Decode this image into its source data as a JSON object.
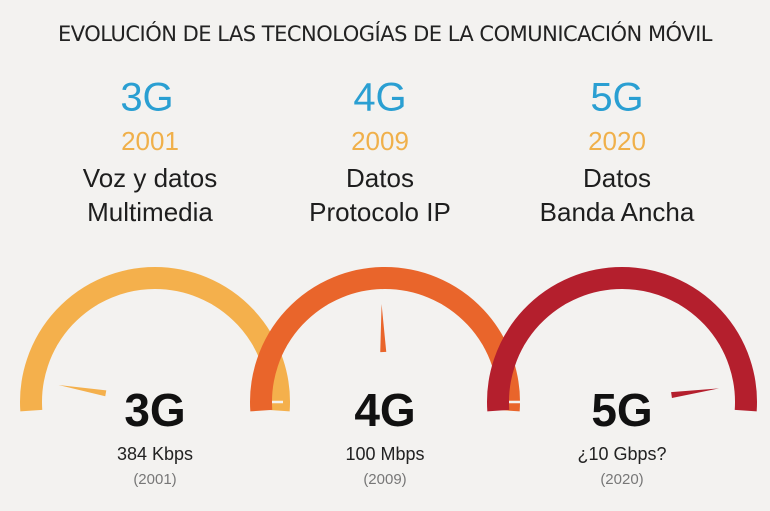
{
  "header": {
    "title": "EVOLUCIÓN DE LAS TECNOLOGÍAS DE LA COMUNICACIÓN MÓVIL"
  },
  "columns": [
    {
      "generation": "3G",
      "year": "2001",
      "line1": "Voz y datos",
      "line2": "Multimedia",
      "gauge": {
        "label": "3G",
        "speed": "384 Kbps",
        "year": "(2001)"
      }
    },
    {
      "generation": "4G",
      "year": "2009",
      "line1": "Datos",
      "line2": "Protocolo IP",
      "gauge": {
        "label": "4G",
        "speed": "100 Mbps",
        "year": "(2009)"
      }
    },
    {
      "generation": "5G",
      "year": "2020",
      "line1": "Datos",
      "line2": "Banda Ancha",
      "gauge": {
        "label": "5G",
        "speed": "¿10 Gbps?",
        "year": "(2020)"
      }
    }
  ]
}
